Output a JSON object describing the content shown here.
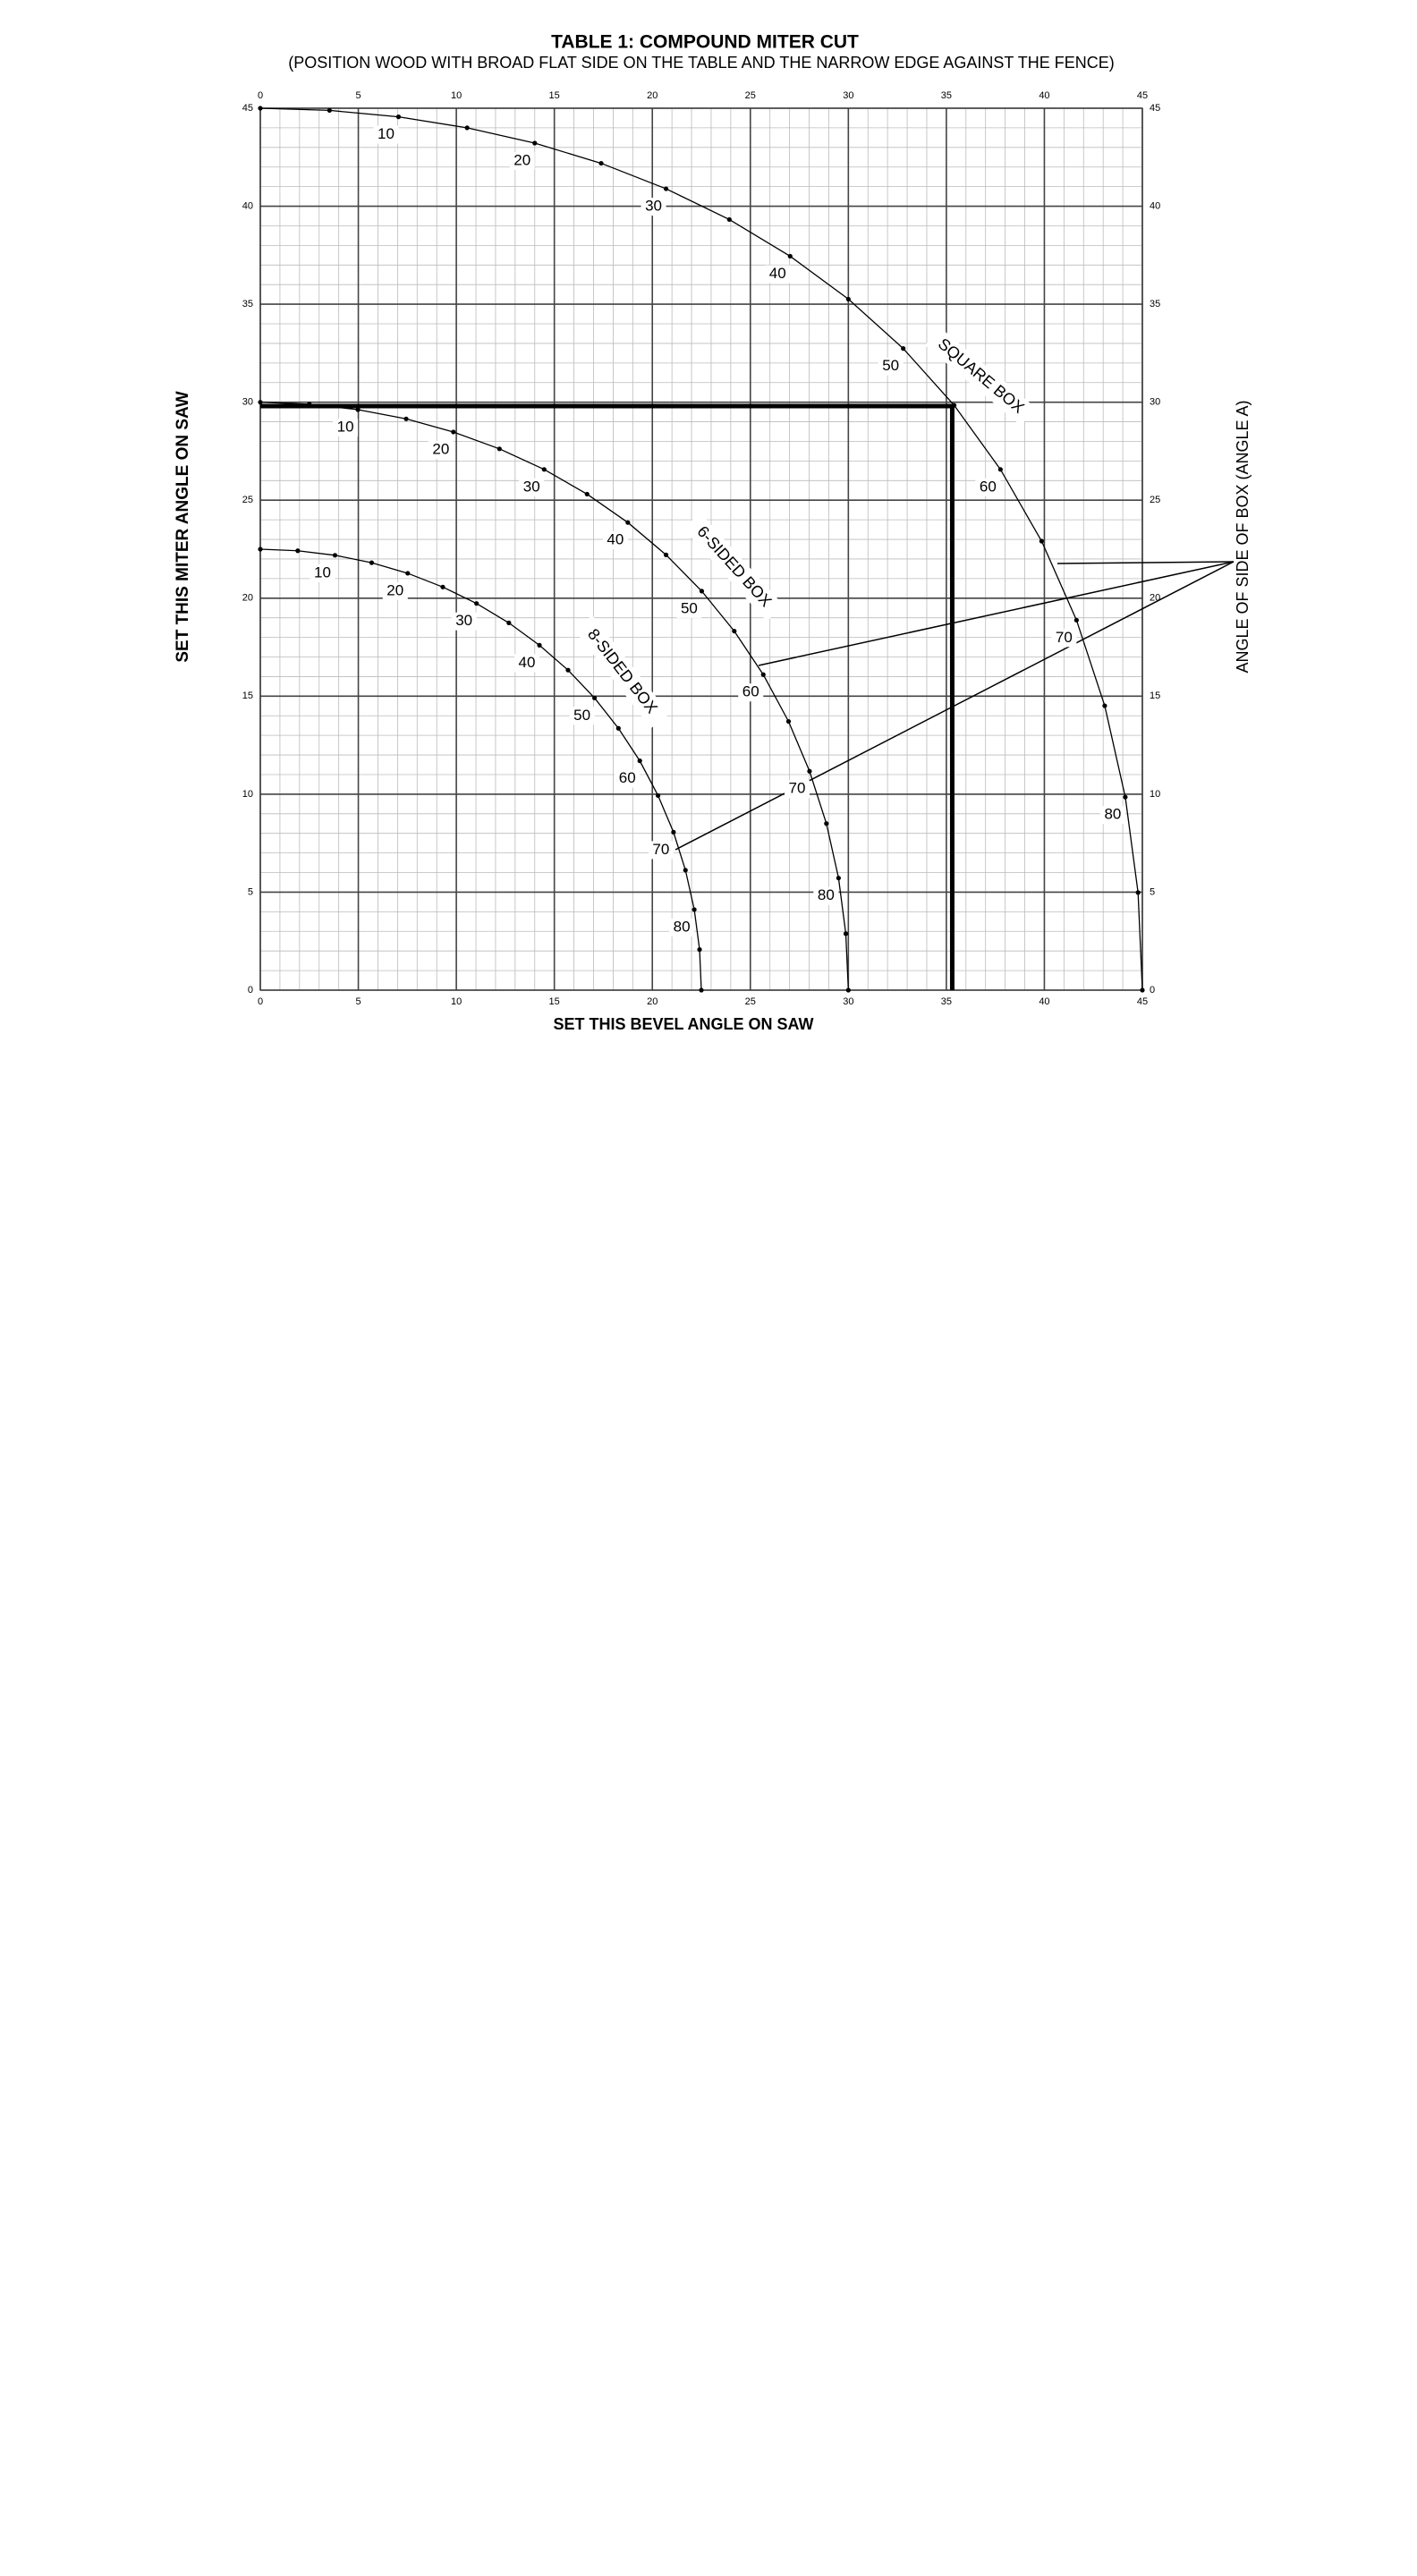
{
  "chart_data": {
    "type": "line",
    "title": "TABLE 1: COMPOUND MITER CUT",
    "subtitle": "(POSITION WOOD WITH BROAD FLAT SIDE ON THE TABLE AND THE NARROW EDGE AGAINST THE FENCE)",
    "x_label": "SET THIS BEVEL ANGLE ON SAW",
    "y_label": "SET THIS MITER ANGLE ON SAW",
    "annotation": "ANGLE OF SIDE OF BOX (ANGLE A)",
    "xlim": [
      0,
      45
    ],
    "ylim": [
      0,
      45
    ],
    "xticks": [
      0,
      5,
      10,
      15,
      20,
      25,
      30,
      35,
      40,
      45
    ],
    "yticks": [
      0,
      5,
      10,
      15,
      20,
      25,
      30,
      35,
      40,
      45
    ],
    "grid": true,
    "highlight": {
      "x": 35.3,
      "y": 29.8
    },
    "series": [
      {
        "name": "SQUARE BOX",
        "color": "#000000",
        "x": [
          0,
          3.53,
          7.05,
          10.55,
          14.0,
          17.39,
          20.7,
          23.93,
          27.03,
          30.0,
          32.8,
          35.4,
          37.76,
          39.86,
          41.64,
          43.08,
          44.13,
          44.78,
          45
        ],
        "values": [
          45,
          44.89,
          44.56,
          44.0,
          43.22,
          42.19,
          40.89,
          39.32,
          37.45,
          35.26,
          32.74,
          29.84,
          26.57,
          22.91,
          18.88,
          14.51,
          9.85,
          4.98,
          0
        ],
        "point_labels": [
          null,
          null,
          10,
          null,
          20,
          null,
          30,
          null,
          40,
          null,
          50,
          null,
          60,
          null,
          70,
          null,
          80,
          null,
          null
        ]
      },
      {
        "name": "6-SIDED BOX",
        "color": "#000000",
        "x": [
          0,
          2.5,
          4.98,
          7.44,
          9.85,
          12.2,
          14.48,
          16.67,
          18.75,
          20.7,
          22.52,
          24.18,
          25.66,
          26.95,
          28.02,
          28.88,
          29.5,
          29.87,
          30
        ],
        "values": [
          30,
          29.9,
          29.62,
          29.15,
          28.48,
          27.62,
          26.57,
          25.31,
          23.86,
          22.21,
          20.36,
          18.32,
          16.1,
          13.71,
          11.17,
          8.5,
          5.72,
          2.88,
          0
        ],
        "point_labels": [
          null,
          null,
          10,
          null,
          20,
          null,
          30,
          null,
          40,
          null,
          50,
          null,
          60,
          null,
          70,
          null,
          80,
          null,
          null
        ]
      },
      {
        "name": "8-SIDED BOX",
        "color": "#000000",
        "x": [
          0,
          1.91,
          3.81,
          5.68,
          7.52,
          9.31,
          11.03,
          12.68,
          14.24,
          15.7,
          17.05,
          18.27,
          19.36,
          20.29,
          21.08,
          21.69,
          22.14,
          22.41,
          22.5
        ],
        "values": [
          22.5,
          22.42,
          22.19,
          21.81,
          21.27,
          20.57,
          19.73,
          18.74,
          17.6,
          16.33,
          14.91,
          13.36,
          11.7,
          9.93,
          8.06,
          6.12,
          4.11,
          2.07,
          0
        ],
        "point_labels": [
          null,
          null,
          10,
          null,
          20,
          null,
          30,
          null,
          40,
          null,
          50,
          null,
          60,
          null,
          70,
          null,
          80,
          null,
          null
        ]
      }
    ]
  }
}
